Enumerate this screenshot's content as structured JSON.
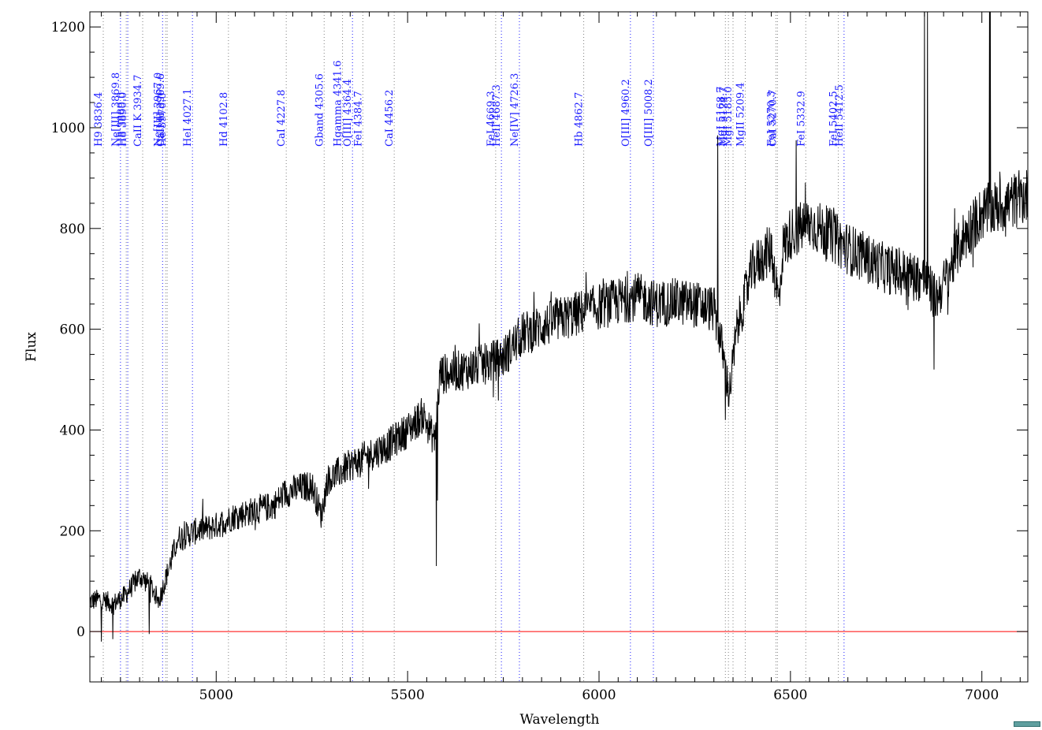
{
  "chart_data": {
    "type": "line",
    "title": "",
    "xlabel": "Wavelength",
    "ylabel": "Flux",
    "xlim": [
      4670,
      7120
    ],
    "ylim": [
      -100,
      1230
    ],
    "x_ticks": [
      5000,
      5500,
      6000,
      6500,
      7000
    ],
    "y_ticks": [
      0,
      200,
      400,
      600,
      800,
      1000,
      1200
    ],
    "grid": false,
    "legend": "none",
    "zero_line": {
      "y": 0,
      "color": "#ff0000"
    },
    "spectrum_color": "#000000",
    "spectrum_anchors": [
      [
        4670,
        60
      ],
      [
        4700,
        65
      ],
      [
        4730,
        55
      ],
      [
        4760,
        70
      ],
      [
        4800,
        110
      ],
      [
        4830,
        90
      ],
      [
        4850,
        60
      ],
      [
        4870,
        110
      ],
      [
        4900,
        185
      ],
      [
        4950,
        200
      ],
      [
        5000,
        210
      ],
      [
        5050,
        230
      ],
      [
        5100,
        240
      ],
      [
        5150,
        250
      ],
      [
        5180,
        275
      ],
      [
        5220,
        285
      ],
      [
        5250,
        290
      ],
      [
        5275,
        230
      ],
      [
        5290,
        300
      ],
      [
        5350,
        330
      ],
      [
        5400,
        350
      ],
      [
        5450,
        370
      ],
      [
        5500,
        400
      ],
      [
        5540,
        430
      ],
      [
        5570,
        380
      ],
      [
        5585,
        510
      ],
      [
        5650,
        520
      ],
      [
        5700,
        530
      ],
      [
        5750,
        545
      ],
      [
        5800,
        590
      ],
      [
        5900,
        620
      ],
      [
        6000,
        645
      ],
      [
        6100,
        665
      ],
      [
        6150,
        650
      ],
      [
        6200,
        655
      ],
      [
        6250,
        650
      ],
      [
        6300,
        640
      ],
      [
        6320,
        570
      ],
      [
        6340,
        470
      ],
      [
        6360,
        600
      ],
      [
        6400,
        720
      ],
      [
        6450,
        760
      ],
      [
        6470,
        650
      ],
      [
        6480,
        760
      ],
      [
        6500,
        790
      ],
      [
        6550,
        810
      ],
      [
        6600,
        790
      ],
      [
        6650,
        760
      ],
      [
        6700,
        740
      ],
      [
        6750,
        720
      ],
      [
        6800,
        710
      ],
      [
        6850,
        700
      ],
      [
        6880,
        660
      ],
      [
        6900,
        690
      ],
      [
        6950,
        780
      ],
      [
        7000,
        830
      ],
      [
        7050,
        845
      ],
      [
        7100,
        860
      ],
      [
        7120,
        865
      ]
    ],
    "spectrum_spikes": [
      [
        4700,
        -20
      ],
      [
        4730,
        -15
      ],
      [
        4825,
        -5
      ],
      [
        5575,
        130
      ],
      [
        5578,
        260
      ],
      [
        6310,
        985
      ],
      [
        6330,
        420
      ],
      [
        6850,
        1230
      ],
      [
        6858,
        1230
      ],
      [
        7020,
        1230
      ],
      [
        7022,
        1230
      ],
      [
        6875,
        520
      ],
      [
        6515,
        975
      ]
    ],
    "reference_lines": [
      {
        "x": 3836.4,
        "label": "H9 3836.4",
        "color": "#808080"
      },
      {
        "x": 3869.8,
        "label": "Ne[III] 3869.8",
        "color": "#1a1aff"
      },
      {
        "x": 3889.0,
        "label": "H8 3889.0",
        "color": "#808080"
      },
      {
        "x": 3890.0,
        "label": "H8 3890.0",
        "color": "#1a1aff"
      },
      {
        "x": 3934.7,
        "label": "CaII K 3934.7",
        "color": "#808080"
      },
      {
        "x": 3967.0,
        "label": "Ne[III] 3967.0",
        "color": "#1a1aff"
      },
      {
        "x": 3969.6,
        "label": "CaII H 3969.6",
        "color": "#808080"
      },
      {
        "x": 3970.0,
        "label": "He 3970.0",
        "color": "#808080"
      },
      {
        "x": 4027.1,
        "label": "HeI 4027.1",
        "color": "#1a1aff"
      },
      {
        "x": 4102.8,
        "label": "Hd 4102.8",
        "color": "#808080"
      },
      {
        "x": 4227.8,
        "label": "CaI 4227.8",
        "color": "#808080"
      },
      {
        "x": 4305.6,
        "label": "Gband 4305.6",
        "color": "#808080"
      },
      {
        "x": 4341.6,
        "label": "Hgamma 4341.6",
        "color": "#808080"
      },
      {
        "x": 4364.4,
        "label": "O[III] 4364.4",
        "color": "#1a1aff"
      },
      {
        "x": 4384.7,
        "label": "FeI 4384.7",
        "color": "#808080"
      },
      {
        "x": 4456.2,
        "label": "CaI 4456.2",
        "color": "#808080"
      },
      {
        "x": 4669.3,
        "label": "FeI 4669.3",
        "color": "#808080"
      },
      {
        "x": 4687.3,
        "label": "HeII 4687.3",
        "color": "#1a1aff"
      },
      {
        "x": 4726.3,
        "label": "Ne[IV] 4726.3",
        "color": "#1a1aff"
      },
      {
        "x": 4862.7,
        "label": "Hb 4862.7",
        "color": "#808080"
      },
      {
        "x": 4960.2,
        "label": "O[III] 4960.2",
        "color": "#1a1aff"
      },
      {
        "x": 5008.2,
        "label": "O[III] 5008.2",
        "color": "#1a1aff"
      },
      {
        "x": 5168.7,
        "label": "MgI 5168.7",
        "color": "#808080"
      },
      {
        "x": 5174.7,
        "label": "MgI 5174.7",
        "color": "#808080"
      },
      {
        "x": 5185.0,
        "label": "MgI 5185.0",
        "color": "#808080"
      },
      {
        "x": 5209.4,
        "label": "MgII 5209.4",
        "color": "#808080"
      },
      {
        "x": 5270.3,
        "label": "FeI 5270.3",
        "color": "#808080"
      },
      {
        "x": 5270.7,
        "label": "CaI 5270.7",
        "color": "#808080"
      },
      {
        "x": 5332.9,
        "label": "FeI 5332.9",
        "color": "#808080"
      },
      {
        "x": 5402.5,
        "label": "FeI 5402.5",
        "color": "#808080"
      },
      {
        "x": 5412.5,
        "label": "HeII 5412.5",
        "color": "#1a1aff"
      }
    ],
    "line_positions_plot": [
      4705,
      4750,
      4765,
      4769,
      4808,
      4860,
      4868,
      4872,
      4938,
      5032,
      5183,
      5282,
      5330,
      5356,
      5383,
      5465,
      5730,
      5745,
      5792,
      5960,
      6082,
      6142,
      6330,
      6338,
      6350,
      6382,
      6462,
      6466,
      6540,
      6625,
      6640
    ]
  }
}
